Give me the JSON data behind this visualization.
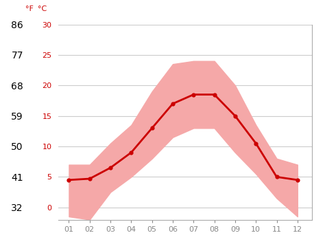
{
  "months": [
    1,
    2,
    3,
    4,
    5,
    6,
    7,
    8,
    9,
    10,
    11,
    12
  ],
  "month_labels": [
    "01",
    "02",
    "03",
    "04",
    "05",
    "06",
    "07",
    "08",
    "09",
    "10",
    "11",
    "12"
  ],
  "mean_temp_c": [
    4.5,
    4.7,
    6.5,
    9.0,
    13.0,
    17.0,
    18.5,
    18.5,
    15.0,
    10.5,
    5.0,
    4.5
  ],
  "max_temp_c": [
    7.0,
    7.0,
    10.5,
    13.5,
    19.0,
    23.5,
    24.0,
    24.0,
    20.0,
    13.5,
    8.0,
    7.0
  ],
  "min_temp_c": [
    -1.5,
    -2.0,
    2.5,
    5.0,
    8.0,
    11.5,
    13.0,
    13.0,
    9.0,
    5.5,
    1.5,
    -1.5
  ],
  "ylim": [
    -2,
    30
  ],
  "yticks_c": [
    0,
    5,
    10,
    15,
    20,
    25,
    30
  ],
  "yticks_f": [
    32,
    41,
    50,
    59,
    68,
    77,
    86
  ],
  "line_color": "#cc0000",
  "band_color": "#f5a8a8",
  "grid_color": "#cccccc",
  "spine_color": "#aaaaaa",
  "background_color": "#ffffff",
  "label_f": "°F",
  "label_c": "°C",
  "tick_color_y": "#cc0000",
  "tick_color_x": "#888888",
  "font_size": 8,
  "line_width": 2.0,
  "marker_size": 3.5
}
